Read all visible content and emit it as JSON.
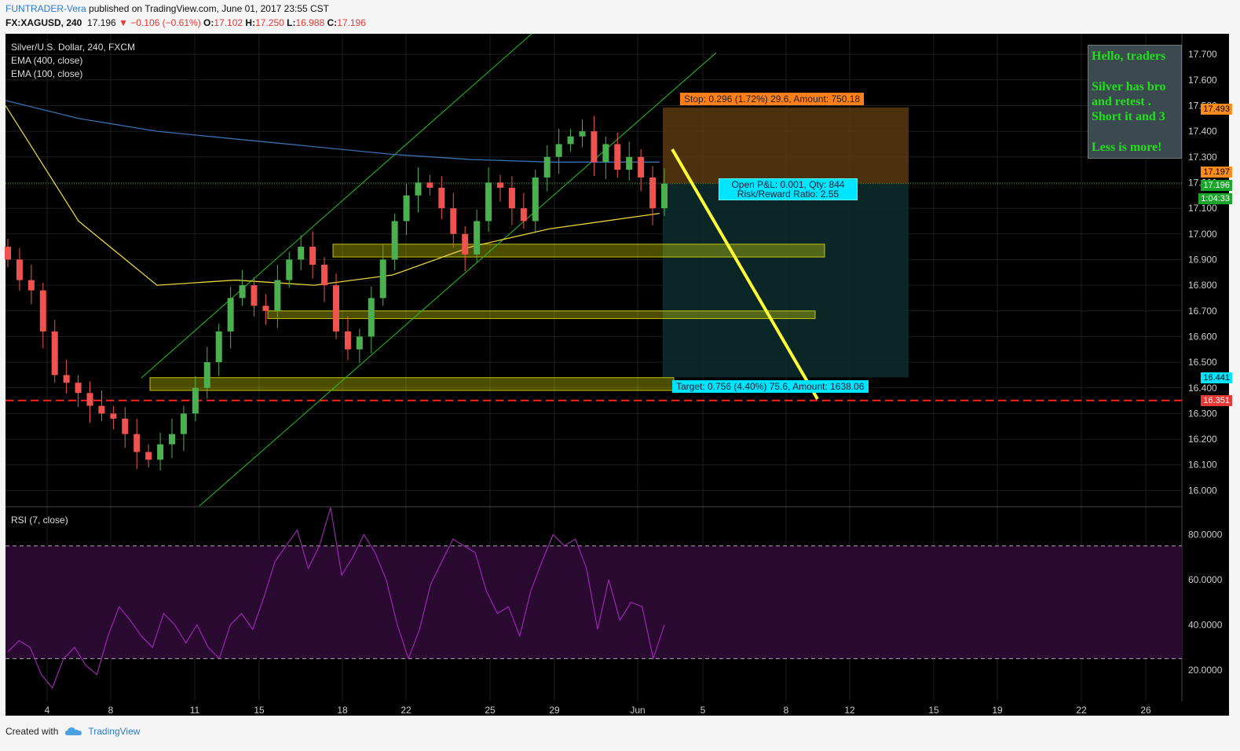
{
  "header": {
    "author": "FUNTRADER-Vera",
    "published": "published on TradingView.com, June 01, 2017 23:55 CST",
    "symbol": "FX:XAGUSD, 240",
    "last": "17.196",
    "change": "▼ −0.106 (−0.61%)",
    "o_label": "O:",
    "o": "17.102",
    "h_label": "H:",
    "h": "17.250",
    "l_label": "L:",
    "l": "16.988",
    "c_label": "C:",
    "c": "17.196"
  },
  "legend": {
    "title": "Silver/U.S. Dollar, 240, FXCM",
    "ema400": "EMA (400, close)",
    "ema100": "EMA (100, close)",
    "rsi": "RSI (7, close)"
  },
  "note": {
    "line1": "Hello, traders",
    "line2": "Silver has bro",
    "line3": "and retest .",
    "line4": "Short it and 3",
    "line5": "Less is more!"
  },
  "position": {
    "stop": "Stop: 0.296 (1.72%) 29.6, Amount: 750.18",
    "pnl": "Open P&L: 0.001, Qty: 844",
    "rr": "Risk/Reward Ratio: 2.55",
    "target": "Target: 0.756 (4.40%) 75.6, Amount: 1638.06"
  },
  "price_labels": {
    "stop": "17.493",
    "ema": "17.197",
    "last": "17.196",
    "countdown": "1:04:33",
    "target": "16.441",
    "hline": "16.351"
  },
  "footer": {
    "created": "Created with",
    "brand": "TradingView"
  },
  "colors": {
    "bg": "#000000",
    "up": "#4caf50",
    "down": "#ef5350",
    "ema400": "#3a6fb0",
    "ema100": "#e6d43a",
    "channel": "#22c51c",
    "rsi": "#9c27b0",
    "zone": "#ffff00",
    "stopfill": "#5a3a10",
    "targetfill": "#0b2a2a",
    "hline": "#ff2020"
  },
  "chart_data": [
    {
      "type": "candlestick",
      "title": "Silver/U.S. Dollar, 240, FXCM",
      "x_ticks": [
        "4",
        "8",
        "11",
        "15",
        "18",
        "22",
        "25",
        "29",
        "Jun",
        "5",
        "8",
        "12",
        "15",
        "19",
        "22",
        "26"
      ],
      "y_ticks": [
        "16.000",
        "16.100",
        "16.200",
        "16.300",
        "16.400",
        "16.500",
        "16.600",
        "16.700",
        "16.800",
        "16.900",
        "17.000",
        "17.100",
        "17.200",
        "17.300",
        "17.400",
        "17.500",
        "17.600",
        "17.700"
      ],
      "ylim": [
        15.94,
        17.78
      ],
      "close_path": [
        16.9,
        16.82,
        16.78,
        16.62,
        16.45,
        16.42,
        16.38,
        16.33,
        16.3,
        16.28,
        16.22,
        16.15,
        16.12,
        16.18,
        16.22,
        16.3,
        16.4,
        16.5,
        16.62,
        16.75,
        16.8,
        16.72,
        16.7,
        16.82,
        16.9,
        16.95,
        16.88,
        16.8,
        16.62,
        16.55,
        16.6,
        16.75,
        16.9,
        17.05,
        17.15,
        17.2,
        17.18,
        17.1,
        17.0,
        16.92,
        17.05,
        17.2,
        17.18,
        17.1,
        17.05,
        17.22,
        17.3,
        17.35,
        17.38,
        17.4,
        17.28,
        17.35,
        17.25,
        17.3,
        17.22,
        17.1,
        17.196
      ],
      "series": [
        {
          "name": "EMA (400, close)",
          "y": [
            17.52,
            17.45,
            17.4,
            17.37,
            17.34,
            17.31,
            17.29,
            17.28,
            17.28
          ]
        },
        {
          "name": "EMA (100, close)",
          "y": [
            17.5,
            17.05,
            16.8,
            16.82,
            16.8,
            16.84,
            16.95,
            17.02,
            17.08
          ]
        }
      ],
      "horizontal_line": 16.351,
      "support_zones": [
        [
          16.91,
          16.96
        ],
        [
          16.67,
          16.7
        ],
        [
          16.39,
          16.44
        ]
      ]
    },
    {
      "type": "line",
      "title": "RSI (7, close)",
      "y_ticks": [
        "20.0000",
        "40.0000",
        "60.0000",
        "80.0000"
      ],
      "levels": [
        25,
        75
      ],
      "ylim": [
        6,
        92
      ],
      "values": [
        28,
        33,
        30,
        18,
        12,
        25,
        30,
        22,
        18,
        35,
        48,
        42,
        35,
        30,
        45,
        40,
        32,
        40,
        30,
        25,
        40,
        45,
        38,
        52,
        68,
        75,
        82,
        65,
        75,
        92,
        62,
        70,
        80,
        72,
        60,
        40,
        25,
        38,
        58,
        68,
        78,
        75,
        72,
        55,
        45,
        48,
        35,
        55,
        68,
        80,
        75,
        78,
        65,
        38,
        60,
        42,
        50,
        48,
        25,
        40
      ]
    }
  ]
}
